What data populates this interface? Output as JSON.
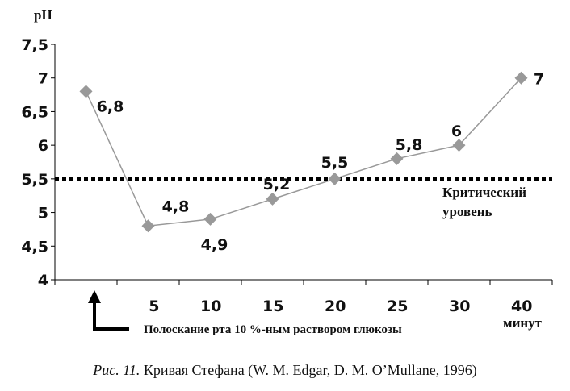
{
  "chart_data": {
    "type": "line",
    "ylabel": "pH",
    "xlabel": "минут",
    "ylim": [
      4,
      7.5
    ],
    "yticks": [
      "4",
      "4,5",
      "5",
      "5,5",
      "6",
      "6,5",
      "7",
      "7,5"
    ],
    "ytick_values": [
      4,
      4.5,
      5,
      5.5,
      6,
      6.5,
      7,
      7.5
    ],
    "categories": [
      "",
      "5",
      "10",
      "15",
      "20",
      "25",
      "30",
      "40"
    ],
    "values": [
      6.8,
      4.8,
      4.9,
      5.2,
      5.5,
      5.8,
      6.0,
      7.0
    ],
    "data_labels": [
      "6,8",
      "4,8",
      "4,9",
      "5,2",
      "5,5",
      "5,8",
      "6",
      "7"
    ],
    "marker": "diamond",
    "series_color": "#999999",
    "threshold": {
      "value": 5.5,
      "label_line1": "Критический",
      "label_line2": "уровень",
      "style": "dotted",
      "color": "#000000"
    },
    "annotation": {
      "text": "Полоскание рта 10 %-ным раствором глюкозы",
      "arrow": "up"
    }
  },
  "caption": {
    "prefix": "Рис. 11.",
    "text": " Кривая Стефана (W. M. Edgar, D. M. O’Mullane, 1996)"
  }
}
